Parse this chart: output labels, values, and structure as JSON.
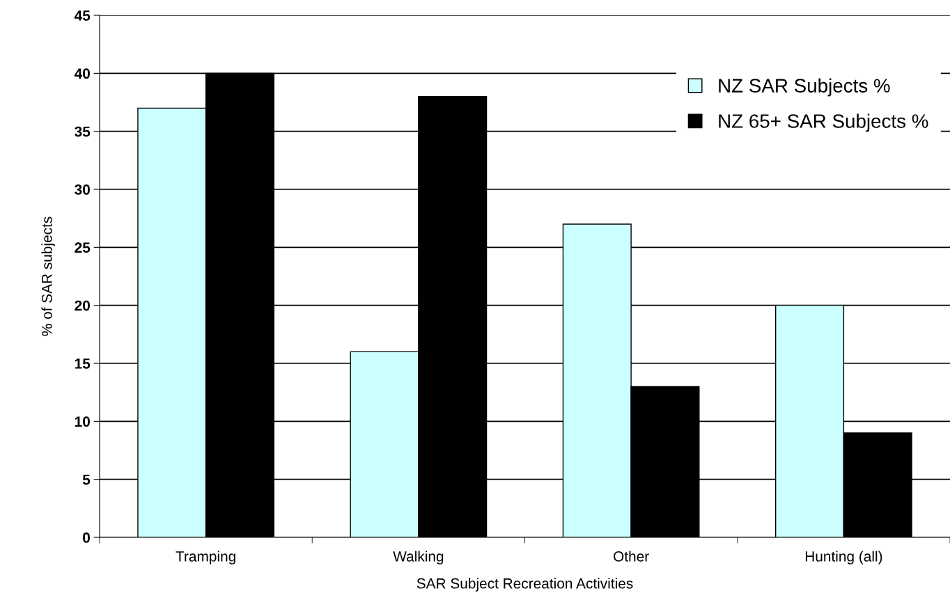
{
  "chart_data": {
    "type": "bar",
    "xlabel": "SAR Subject Recreation Activities",
    "ylabel": "% of SAR subjects",
    "categories": [
      "Tramping",
      "Walking",
      "Other",
      "Hunting (all)"
    ],
    "series": [
      {
        "name": "NZ SAR Subjects %",
        "color": "#ccffff",
        "values": [
          37,
          16,
          27,
          20
        ]
      },
      {
        "name": "NZ 65+ SAR Subjects %",
        "color": "#000000",
        "values": [
          40,
          38,
          13,
          9
        ]
      }
    ],
    "ylim": [
      0,
      45
    ],
    "yticks": [
      0,
      5,
      10,
      15,
      20,
      25,
      30,
      35,
      40,
      45
    ],
    "grid": "y",
    "legend": "top right"
  }
}
